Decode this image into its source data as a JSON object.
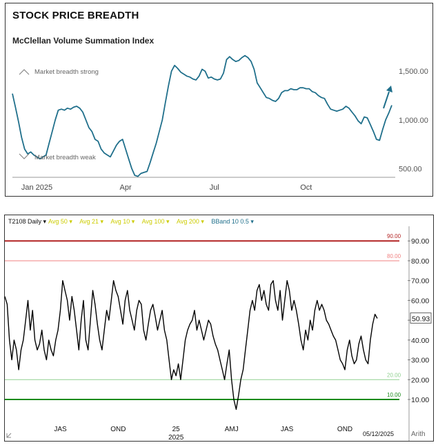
{
  "top": {
    "title": "STOCK PRICE BREADTH",
    "subtitle": "McClellan Volume Summation Index",
    "annot_strong": "Market breadth strong",
    "annot_weak": "Market breadth weak",
    "line_color": "#1f6f8b"
  },
  "bottom": {
    "header": {
      "symbol": "T2108 Daily",
      "items": [
        "Avg 50",
        "Avg 21",
        "Avg 10",
        "Avg 100",
        "Avg 200",
        "BBand 10 0.5"
      ]
    },
    "last_value": "50.93",
    "date_label": "05/12/2025",
    "scale_label": "Arith",
    "line_color": "#000000"
  },
  "chart_data": [
    {
      "type": "line",
      "title": "McClellan Volume Summation Index",
      "x_ticks": [
        "Jan 2025",
        "Apr",
        "Jul",
        "Oct"
      ],
      "x_tick_index": [
        8,
        37,
        66,
        96
      ],
      "y_ticks": [
        500,
        1000,
        1500
      ],
      "y_tick_labels": [
        "500.00",
        "1,000.00",
        "1,500.00"
      ],
      "ylim": [
        410,
        1700
      ],
      "grid": false,
      "series": [
        {
          "values": [
            1270,
            1130,
            980,
            820,
            700,
            650,
            670,
            640,
            620,
            600,
            620,
            640,
            760,
            880,
            1000,
            1100,
            1110,
            1100,
            1120,
            1110,
            1130,
            1140,
            1120,
            1080,
            1000,
            920,
            880,
            800,
            780,
            700,
            660,
            640,
            620,
            680,
            740,
            780,
            800,
            700,
            600,
            500,
            430,
            420,
            450,
            460,
            470,
            560,
            660,
            760,
            880,
            1000,
            1180,
            1350,
            1500,
            1560,
            1530,
            1490,
            1470,
            1450,
            1440,
            1420,
            1410,
            1450,
            1520,
            1500,
            1430,
            1440,
            1420,
            1410,
            1420,
            1480,
            1620,
            1650,
            1620,
            1600,
            1610,
            1640,
            1660,
            1640,
            1600,
            1520,
            1380,
            1330,
            1280,
            1230,
            1220,
            1200,
            1190,
            1220,
            1280,
            1300,
            1300,
            1320,
            1310,
            1310,
            1330,
            1330,
            1320,
            1320,
            1290,
            1280,
            1250,
            1230,
            1220,
            1160,
            1110,
            1100,
            1090,
            1100,
            1110,
            1140,
            1120,
            1080,
            1040,
            990,
            960,
            1030,
            1020,
            950,
            880,
            800,
            790,
            900,
            1000,
            1070,
            1150
          ]
        }
      ],
      "annotations": [
        "Market breadth strong",
        "Market breadth weak"
      ]
    },
    {
      "type": "line",
      "title": "T2108 Daily",
      "x_ticks": [
        "JAS",
        "OND",
        "25",
        "AMJ",
        "JAS",
        "OND"
      ],
      "x_tick_secondary": [
        "",
        "",
        "2025",
        "",
        "",
        ""
      ],
      "x_tick_index": [
        24,
        49,
        74,
        98,
        122,
        147
      ],
      "y_ticks": [
        10,
        20,
        30,
        40,
        50,
        60,
        70,
        80,
        90
      ],
      "y_tick_labels": [
        "10.00",
        "20.00",
        "30.00",
        "40.00",
        "50.00",
        "60.00",
        "70.00",
        "80.00",
        "90.00"
      ],
      "ylim": [
        2,
        96
      ],
      "reference_lines": [
        {
          "value": 90,
          "label": "90.00",
          "color": "#b22222",
          "width": 2
        },
        {
          "value": 80,
          "label": "80.00",
          "color": "#f08080",
          "width": 1
        },
        {
          "value": 20,
          "label": "20.00",
          "color": "#90d090",
          "width": 1
        },
        {
          "value": 10,
          "label": "10.00",
          "color": "#1a8a1a",
          "width": 2
        }
      ],
      "last_value": 50.93,
      "series": [
        {
          "values": [
            62,
            58,
            40,
            30,
            40,
            35,
            25,
            35,
            40,
            50,
            60,
            45,
            55,
            40,
            35,
            38,
            45,
            35,
            30,
            40,
            35,
            32,
            40,
            45,
            55,
            70,
            65,
            60,
            50,
            62,
            55,
            45,
            35,
            50,
            60,
            40,
            35,
            50,
            65,
            58,
            48,
            40,
            35,
            45,
            55,
            50,
            60,
            70,
            65,
            62,
            55,
            48,
            60,
            65,
            55,
            50,
            45,
            55,
            60,
            58,
            45,
            40,
            48,
            55,
            58,
            52,
            45,
            50,
            55,
            45,
            40,
            30,
            20,
            25,
            22,
            28,
            20,
            30,
            40,
            45,
            48,
            50,
            55,
            45,
            50,
            45,
            40,
            45,
            50,
            48,
            42,
            38,
            35,
            30,
            25,
            20,
            28,
            35,
            20,
            10,
            5,
            12,
            20,
            25,
            35,
            45,
            55,
            60,
            55,
            65,
            68,
            60,
            65,
            58,
            55,
            68,
            70,
            60,
            55,
            65,
            50,
            60,
            70,
            65,
            55,
            60,
            55,
            48,
            40,
            35,
            45,
            40,
            50,
            45,
            55,
            60,
            55,
            58,
            55,
            50,
            48,
            45,
            42,
            40,
            35,
            30,
            28,
            25,
            35,
            40,
            32,
            28,
            30,
            38,
            42,
            35,
            30,
            28,
            40,
            48,
            53,
            50.93
          ]
        }
      ]
    }
  ]
}
